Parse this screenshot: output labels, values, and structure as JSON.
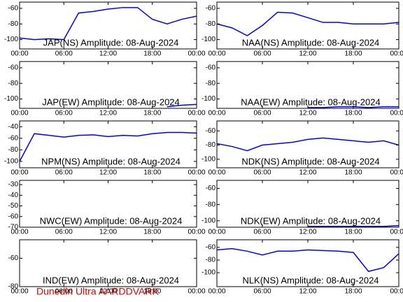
{
  "chart_data": [
    {
      "type": "line",
      "title": "JAP(NS) Amplitude: 08-Aug-2024",
      "x": [
        0,
        2,
        4,
        6,
        8,
        10,
        12,
        14,
        16,
        18,
        20,
        22,
        24
      ],
      "values": [
        -98,
        -100,
        -99,
        -100,
        -66,
        -64,
        -61,
        -59,
        -59,
        -74,
        -80,
        -74,
        -70
      ],
      "color": "#0000ff",
      "xlim": [
        0,
        24
      ],
      "xticks": [
        {
          "value": 0,
          "label": "00:00"
        },
        {
          "value": 6,
          "label": "06:00"
        },
        {
          "value": 12,
          "label": "12:00"
        },
        {
          "value": 18,
          "label": "18:00"
        },
        {
          "value": 24,
          "label": "00:00"
        }
      ],
      "ylim": [
        -112,
        -52
      ],
      "yticks": [
        -60,
        -80,
        -100
      ]
    },
    {
      "type": "line",
      "title": "NAA(NS) Amplitude: 08-Aug-2024",
      "x": [
        0,
        2,
        4,
        6,
        8,
        10,
        12,
        14,
        16,
        18,
        20,
        22,
        24
      ],
      "values": [
        -80,
        -85,
        -95,
        -82,
        -65,
        -66,
        -72,
        -78,
        -78,
        -80,
        -80,
        -80,
        -78
      ],
      "color": "#0000ff",
      "xlim": [
        0,
        24
      ],
      "xticks": [
        {
          "value": 0,
          "label": "00:00"
        },
        {
          "value": 6,
          "label": "06:00"
        },
        {
          "value": 12,
          "label": "12:00"
        },
        {
          "value": 18,
          "label": "18:00"
        },
        {
          "value": 24,
          "label": "00:00"
        }
      ],
      "ylim": [
        -112,
        -52
      ],
      "yticks": [
        -60,
        -80,
        -100
      ]
    },
    {
      "type": "line",
      "title": "JAP(EW) Amplitude: 08-Aug-2024",
      "x": [
        0,
        2,
        4,
        6,
        8,
        10,
        12,
        14,
        16,
        18,
        20,
        22,
        24
      ],
      "values": [
        null,
        null,
        null,
        null,
        null,
        null,
        null,
        null,
        null,
        null,
        -110,
        -108,
        -107
      ],
      "color": "#0000ff",
      "xlim": [
        0,
        24
      ],
      "xticks": [
        {
          "value": 0,
          "label": "00:00"
        },
        {
          "value": 6,
          "label": "06:00"
        },
        {
          "value": 12,
          "label": "12:00"
        },
        {
          "value": 18,
          "label": "18:00"
        },
        {
          "value": 24,
          "label": "00:00"
        }
      ],
      "ylim": [
        -112,
        -52
      ],
      "yticks": [
        -60,
        -80,
        -100
      ]
    },
    {
      "type": "line",
      "title": "NAA(EW) Amplitude: 08-Aug-2024",
      "x": [
        0,
        2,
        4,
        6,
        8,
        10,
        12,
        14,
        16,
        18,
        20,
        22,
        24
      ],
      "values": [
        null,
        null,
        null,
        null,
        null,
        null,
        -111,
        -111,
        -110,
        -110,
        -111,
        -110,
        -110
      ],
      "color": "#0000ff",
      "xlim": [
        0,
        24
      ],
      "xticks": [
        {
          "value": 0,
          "label": "00:00"
        },
        {
          "value": 6,
          "label": "06:00"
        },
        {
          "value": 12,
          "label": "12:00"
        },
        {
          "value": 18,
          "label": "18:00"
        },
        {
          "value": 24,
          "label": "00:00"
        }
      ],
      "ylim": [
        -112,
        -52
      ],
      "yticks": [
        -60,
        -80,
        -100
      ]
    },
    {
      "type": "line",
      "title": "NPM(NS) Amplitude: 08-Aug-2024",
      "x": [
        0,
        2,
        4,
        6,
        8,
        10,
        12,
        14,
        16,
        18,
        20,
        22,
        24
      ],
      "values": [
        -100,
        -52,
        -55,
        -58,
        -55,
        -54,
        -57,
        -55,
        -56,
        -52,
        -50,
        -50,
        -51
      ],
      "color": "#0000ff",
      "xlim": [
        0,
        24
      ],
      "xticks": [
        {
          "value": 0,
          "label": "00:00"
        },
        {
          "value": 6,
          "label": "06:00"
        },
        {
          "value": 12,
          "label": "12:00"
        },
        {
          "value": 18,
          "label": "18:00"
        },
        {
          "value": 24,
          "label": "00:00"
        }
      ],
      "ylim": [
        -111,
        -30
      ],
      "yticks": [
        -40,
        -60,
        -80,
        -100
      ]
    },
    {
      "type": "line",
      "title": "NDK(NS) Amplitude: 08-Aug-2024",
      "x": [
        0,
        2,
        4,
        6,
        8,
        10,
        12,
        14,
        16,
        18,
        20,
        22,
        24
      ],
      "values": [
        -78,
        -82,
        -88,
        -80,
        -78,
        -76,
        -72,
        -70,
        -72,
        -74,
        -76,
        -74,
        -80
      ],
      "color": "#0000ff",
      "xlim": [
        0,
        24
      ],
      "xticks": [
        {
          "value": 0,
          "label": "00:00"
        },
        {
          "value": 6,
          "label": "06:00"
        },
        {
          "value": 12,
          "label": "12:00"
        },
        {
          "value": 18,
          "label": "18:00"
        },
        {
          "value": 24,
          "label": "00:00"
        }
      ],
      "ylim": [
        -112,
        -46
      ],
      "yticks": [
        -60,
        -80,
        -100
      ]
    },
    {
      "type": "line",
      "title": "NWC(EW) Amplitude: 08-Aug-2024",
      "x": [
        0,
        2,
        4,
        6,
        8,
        10,
        12,
        14,
        16,
        18,
        20,
        22,
        24
      ],
      "values": [
        null,
        null,
        null,
        null,
        null,
        null,
        null,
        null,
        null,
        null,
        null,
        null,
        null
      ],
      "color": "#0000ff",
      "xlim": [
        0,
        24
      ],
      "xticks": [
        {
          "value": 0,
          "label": "00:00"
        },
        {
          "value": 6,
          "label": "06:00"
        },
        {
          "value": 12,
          "label": "12:00"
        },
        {
          "value": 18,
          "label": "18:00"
        },
        {
          "value": 24,
          "label": "00:00"
        }
      ],
      "ylim": [
        -70,
        -26
      ],
      "yticks": [
        -30,
        -40,
        -50,
        -60,
        -70
      ]
    },
    {
      "type": "line",
      "title": "NDK(EW) Amplitude: 08-Aug-2024",
      "x": [
        0,
        2,
        4,
        6,
        8,
        10,
        12,
        14,
        16,
        18,
        20,
        22,
        24
      ],
      "values": [
        null,
        null,
        null,
        null,
        null,
        null,
        -107,
        -107,
        -107,
        -107,
        -107,
        -107,
        -106
      ],
      "color": "#0000ff",
      "xlim": [
        0,
        24
      ],
      "xticks": [
        {
          "value": 0,
          "label": "00:00"
        },
        {
          "value": 6,
          "label": "06:00"
        },
        {
          "value": 12,
          "label": "12:00"
        },
        {
          "value": 18,
          "label": "18:00"
        },
        {
          "value": 24,
          "label": "00:00"
        }
      ],
      "ylim": [
        -108,
        -50
      ],
      "yticks": [
        -60,
        -80,
        -100
      ]
    },
    {
      "type": "line",
      "title": "IND(EW) Amplitude: 08-Aug-2024",
      "x": [
        0,
        2,
        4,
        6,
        8,
        10,
        12,
        14,
        16,
        18,
        20,
        22,
        24
      ],
      "values": [
        null,
        null,
        null,
        null,
        null,
        null,
        null,
        null,
        null,
        null,
        null,
        null,
        null
      ],
      "color": "#0000ff",
      "xlim": [
        0,
        24
      ],
      "xticks": [
        {
          "value": 0,
          "label": "00:00"
        },
        {
          "value": 6,
          "label": "06:00"
        },
        {
          "value": 12,
          "label": "12:00"
        },
        {
          "value": 18,
          "label": "18:00"
        },
        {
          "value": 24,
          "label": "00:00"
        }
      ],
      "ylim": [
        -80,
        -47
      ],
      "yticks": [
        -60,
        -80
      ]
    },
    {
      "type": "line",
      "title": "NLK(NS) Amplitude: 08-Aug-2024",
      "x": [
        0,
        2,
        4,
        6,
        8,
        10,
        12,
        14,
        16,
        18,
        20,
        22,
        24
      ],
      "values": [
        -64,
        -62,
        -66,
        -72,
        -66,
        -66,
        -64,
        -65,
        -66,
        -68,
        -98,
        -92,
        -70
      ],
      "color": "#0000ff",
      "xlim": [
        0,
        24
      ],
      "xticks": [
        {
          "value": 0,
          "label": "00:00"
        },
        {
          "value": 6,
          "label": "06:00"
        },
        {
          "value": 12,
          "label": "12:00"
        },
        {
          "value": 18,
          "label": "18:00"
        },
        {
          "value": 24,
          "label": "00:00"
        }
      ],
      "ylim": [
        -122,
        -48
      ],
      "yticks": [
        -60,
        -80,
        -100
      ]
    }
  ],
  "footer": "Dunedin Ultra AARDDVARK"
}
